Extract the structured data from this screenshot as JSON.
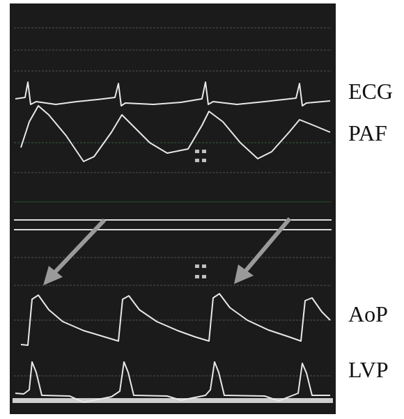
{
  "labels": [
    "ECG",
    "PAF",
    "AoP",
    "LVP"
  ]
}
